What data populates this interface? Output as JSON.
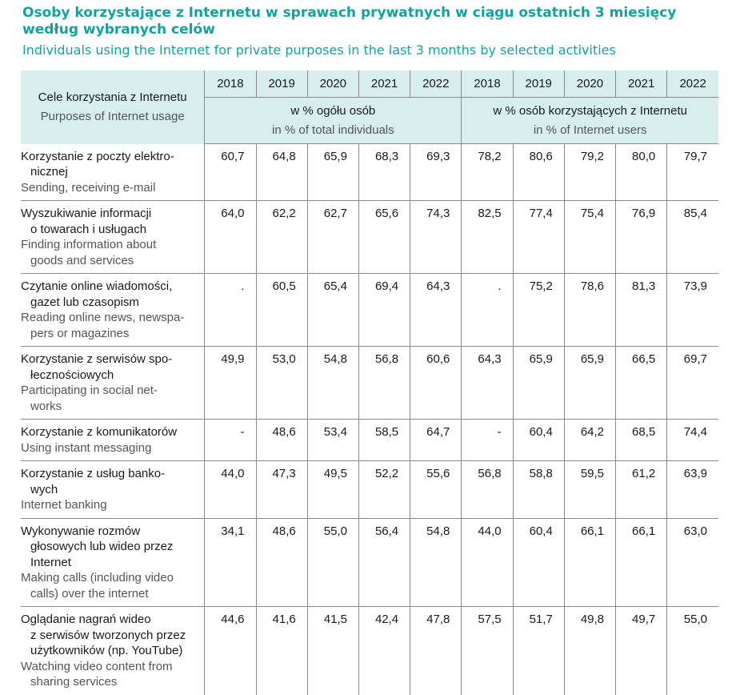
{
  "title": {
    "pl": "Osoby korzystające z Internetu w sprawach prywatnych w ciągu ostatnich 3 miesięcy według wybranych celów",
    "en": "Individuals using the Internet for private purposes in the last 3 months by selected activities"
  },
  "header": {
    "purpose_pl": "Cele korzystania z Internetu",
    "purpose_en": "Purposes of Internet usage",
    "years": [
      "2018",
      "2019",
      "2020",
      "2021",
      "2022",
      "2018",
      "2019",
      "2020",
      "2021",
      "2022"
    ],
    "unit_total_pl": "w % ogółu osób",
    "unit_total_en": "in % of total individuals",
    "unit_users_pl": "w % osób korzystających z Internetu",
    "unit_users_en": "in % of Internet users"
  },
  "rows": [
    {
      "pl": "Korzystanie z poczty elektro-\nnicznej",
      "en": "Sending, receiving e-mail",
      "values": [
        "60,7",
        "64,8",
        "65,9",
        "68,3",
        "69,3",
        "78,2",
        "80,6",
        "79,2",
        "80,0",
        "79,7"
      ]
    },
    {
      "pl": "Wyszukiwanie informacji\no towarach i usługach",
      "en": "Finding information about\ngoods and services",
      "values": [
        "64,0",
        "62,2",
        "62,7",
        "65,6",
        "74,3",
        "82,5",
        "77,4",
        "75,4",
        "76,9",
        "85,4"
      ]
    },
    {
      "pl": "Czytanie online wiadomości,\ngazet lub czasopism",
      "en": "Reading online news, newspa-\npers or magazines",
      "values": [
        ".",
        "60,5",
        "65,4",
        "69,4",
        "64,3",
        ".",
        "75,2",
        "78,6",
        "81,3",
        "73,9"
      ]
    },
    {
      "pl": "Korzystanie z serwisów spo-\nłecznościowych",
      "en": "Participating in social net-\nworks",
      "values": [
        "49,9",
        "53,0",
        "54,8",
        "56,8",
        "60,6",
        "64,3",
        "65,9",
        "65,9",
        "66,5",
        "69,7"
      ]
    },
    {
      "pl": "Korzystanie z komunikatorów",
      "en": "Using instant messaging",
      "values": [
        "-",
        "48,6",
        "53,4",
        "58,5",
        "64,7",
        "-",
        "60,4",
        "64,2",
        "68,5",
        "74,4"
      ]
    },
    {
      "pl": "Korzystanie z usług banko-\nwych",
      "en": "Internet banking",
      "values": [
        "44,0",
        "47,3",
        "49,5",
        "52,2",
        "55,6",
        "56,8",
        "58,8",
        "59,5",
        "61,2",
        "63,9"
      ]
    },
    {
      "pl": "Wykonywanie rozmów\ngłosowych lub wideo przez\nInternet",
      "en": "Making calls (including video\ncalls) over the internet",
      "values": [
        "34,1",
        "48,6",
        "55,0",
        "56,4",
        "54,8",
        "44,0",
        "60,4",
        "66,1",
        "66,1",
        "63,0"
      ]
    },
    {
      "pl": "Oglądanie nagrań wideo\nz serwisów tworzonych przez\nużytkowników (np. YouTube)",
      "en": "Watching video content from\nsharing services",
      "values": [
        "44,6",
        "41,6",
        "41,5",
        "42,4",
        "47,8",
        "57,5",
        "51,7",
        "49,8",
        "49,7",
        "55,0"
      ]
    }
  ]
}
